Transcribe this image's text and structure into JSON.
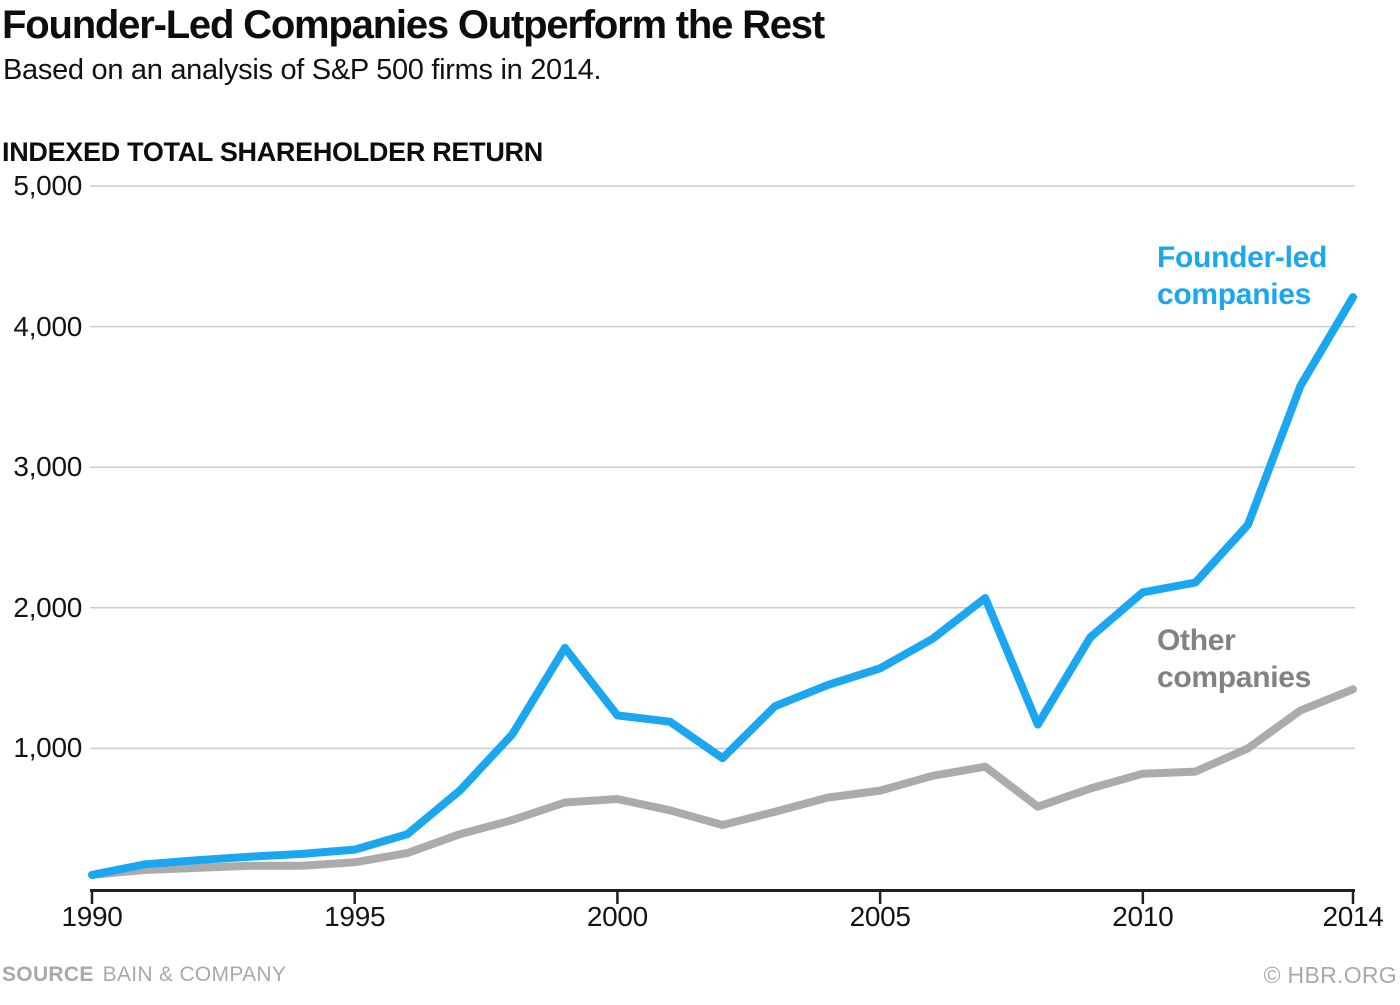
{
  "chart_data": {
    "type": "line",
    "title": "Founder-Led Companies Outperform the Rest",
    "subtitle": "Based on an analysis of S&P 500 firms in 2014.",
    "ylabel": "INDEXED TOTAL SHAREHOLDER RETURN",
    "xlabel": "",
    "ylim": [
      0,
      5000
    ],
    "y_ticks": [
      1000,
      2000,
      3000,
      4000,
      5000
    ],
    "y_tick_labels": [
      "1,000",
      "2,000",
      "3,000",
      "4,000",
      "5,000"
    ],
    "x_ticks": [
      1990,
      1995,
      2000,
      2005,
      2010,
      2014
    ],
    "x_tick_labels": [
      "1990",
      "1995",
      "2000",
      "2005",
      "2010",
      "2014"
    ],
    "grid": "horizontal",
    "legend_position": "inline-labels",
    "axis_color": "#231f20",
    "gridline_color": "#cccccc",
    "x": [
      1990,
      1991,
      1992,
      1993,
      1994,
      1995,
      1996,
      1997,
      1998,
      1999,
      2000,
      2001,
      2002,
      2003,
      2004,
      2005,
      2006,
      2007,
      2008,
      2009,
      2010,
      2011,
      2012,
      2013,
      2014
    ],
    "series": [
      {
        "name": "Founder-led companies",
        "color": "#1aa7f0",
        "label_color": "#1aa7f0",
        "values": [
          100,
          175,
          205,
          230,
          250,
          280,
          390,
          700,
          1100,
          1715,
          1235,
          1190,
          930,
          1300,
          1450,
          1570,
          1780,
          2070,
          1170,
          1790,
          2110,
          2180,
          2590,
          3580,
          4210
        ]
      },
      {
        "name": "Other companies",
        "color": "#ababab",
        "label_color": "#808285",
        "values": [
          100,
          135,
          150,
          165,
          165,
          190,
          255,
          390,
          490,
          615,
          640,
          560,
          455,
          550,
          650,
          700,
          805,
          870,
          585,
          715,
          820,
          835,
          1000,
          1270,
          1420
        ]
      }
    ]
  },
  "series_labels": {
    "founder": "Founder-led\ncompanies",
    "other": "Other\ncompanies"
  },
  "footer": {
    "source_label": "SOURCE",
    "source_name": "BAIN & COMPANY",
    "credit": "© HBR.ORG"
  }
}
